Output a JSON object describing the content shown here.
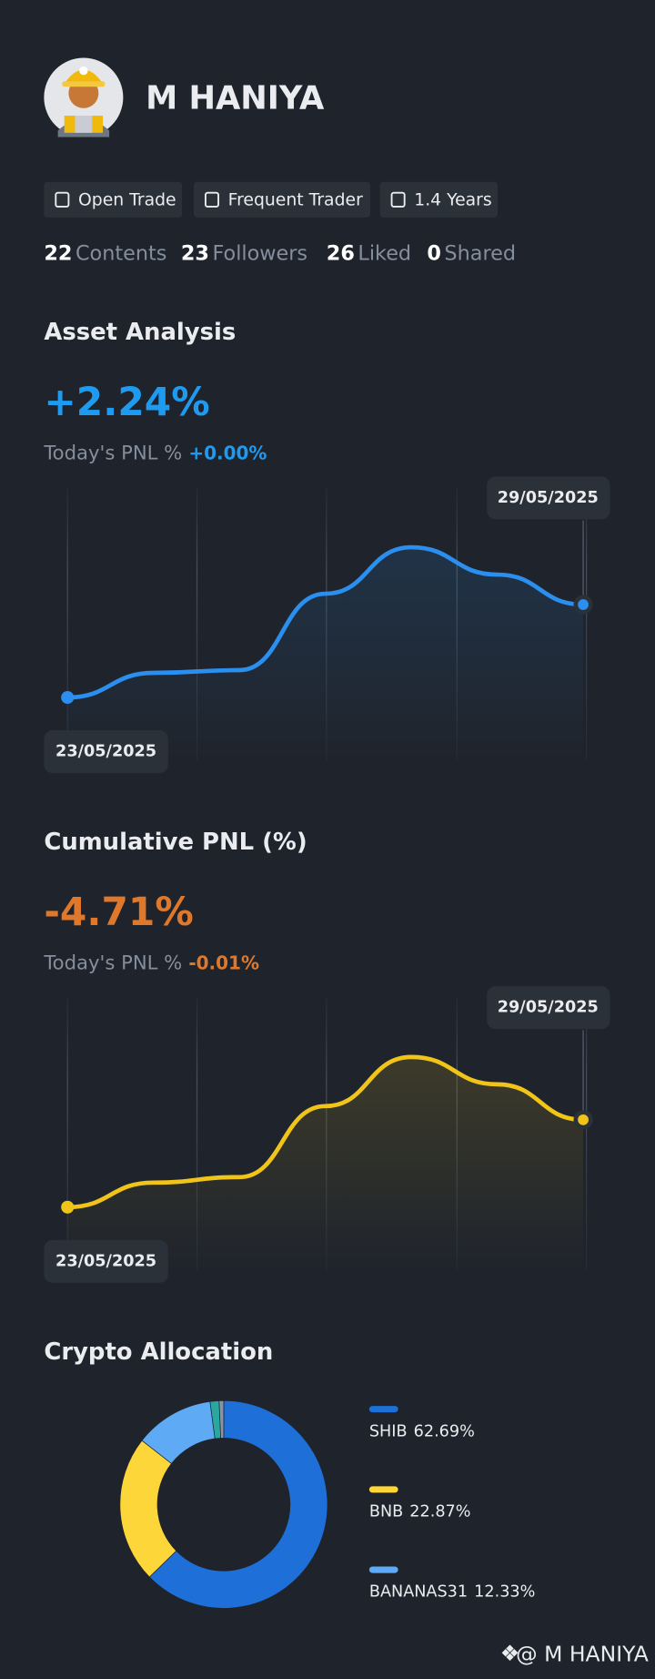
{
  "profile": {
    "name": "M HANIYA",
    "badges": [
      "Open Trade",
      "Frequent Trader",
      "1.4 Years"
    ],
    "stats": [
      {
        "count": 22,
        "label": "Contents"
      },
      {
        "count": 23,
        "label": "Followers"
      },
      {
        "count": 26,
        "label": "Liked"
      },
      {
        "count": 0,
        "label": "Shared"
      }
    ]
  },
  "chart_data": [
    {
      "type": "line",
      "title": "Asset Analysis",
      "summary": {
        "value": "+2.24%",
        "label": "Today's PNL %",
        "change": "+0.00%"
      },
      "categories": [
        "23/05/2025",
        null,
        null,
        null,
        null,
        null,
        "29/05/2025"
      ],
      "values": [
        23,
        32,
        33,
        61,
        78,
        68,
        57
      ],
      "ylim": [
        0,
        100
      ],
      "color": "#2b8ff0",
      "grid": true
    },
    {
      "type": "line",
      "title": "Cumulative PNL (%)",
      "summary": {
        "value": "-4.71%",
        "label": "Today's PNL %",
        "change": "-0.01%"
      },
      "categories": [
        "23/05/2025",
        null,
        null,
        null,
        null,
        null,
        "29/05/2025"
      ],
      "values": [
        23,
        32,
        34,
        60,
        78,
        68,
        55
      ],
      "ylim": [
        0,
        100
      ],
      "color": "#f0c419",
      "grid": true
    },
    {
      "type": "donut",
      "title": "Crypto Allocation",
      "categories": [
        "SHIB",
        "BNB",
        "BANANAS31",
        null,
        null
      ],
      "values": [
        62.69,
        22.87,
        12.33,
        1.4,
        0.71
      ],
      "value_labels": [
        "62.69%",
        "22.87%",
        "12.33%",
        null,
        null
      ],
      "colors": [
        "#1f6fd8",
        "#fdd63a",
        "#5eaaf5",
        "#2aa8a0",
        "#8a94a6"
      ]
    }
  ],
  "footer": "@ M HANIYA"
}
